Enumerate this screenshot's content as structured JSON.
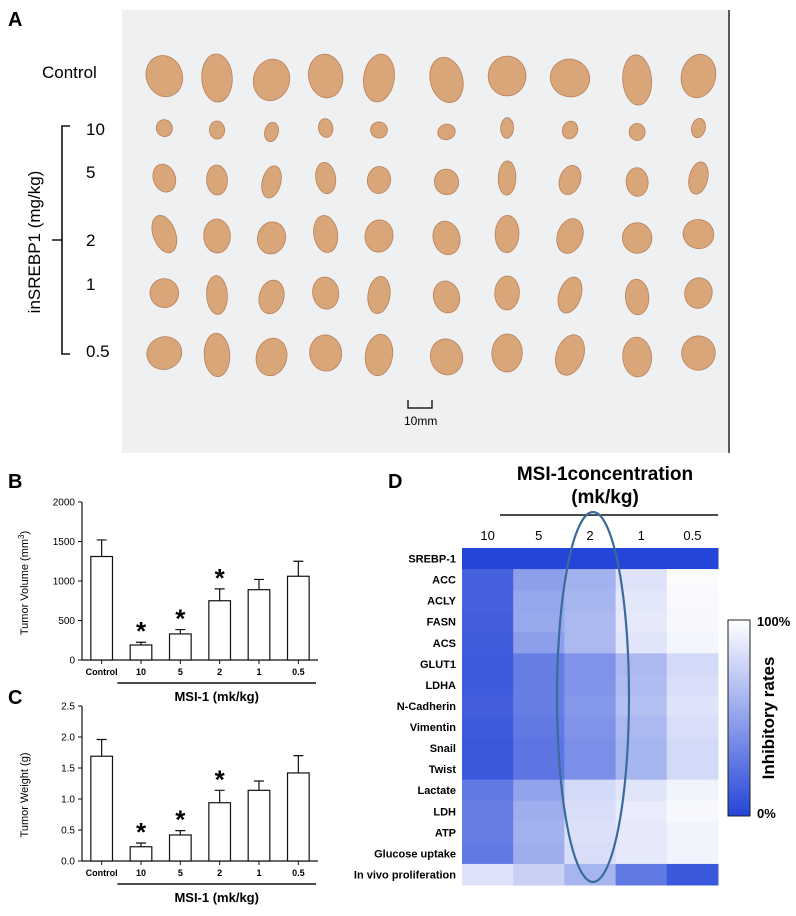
{
  "panel_a": {
    "label": "A",
    "row_label_control": "Control",
    "axis_label": "inSREBP1 (mg/kg)",
    "doses": [
      "10",
      "5",
      "2",
      "1",
      "0.5"
    ],
    "scale_bar_text": "10mm",
    "photo_background": "#eef0f2",
    "tumor_color": "#d9a67a",
    "tumor_counts": {
      "control": 10,
      "per_dose_row": 10
    }
  },
  "panel_b": {
    "label": "B",
    "chart_data": {
      "type": "bar",
      "ylabel": "Tumor Volume (mm",
      "ylabel_sup": "3",
      "ylabel_close": ")",
      "xlabel": "MSI-1 (mk/kg)",
      "categories": [
        "Control",
        "10",
        "5",
        "2",
        "1",
        "0.5"
      ],
      "values": [
        1310,
        190,
        330,
        750,
        890,
        1060
      ],
      "errors": [
        210,
        35,
        55,
        150,
        130,
        190
      ],
      "significant": [
        false,
        true,
        true,
        true,
        false,
        false
      ],
      "significance_marker": "*",
      "ylim": [
        0,
        2000
      ],
      "yticks": [
        "0",
        "500",
        "1000",
        "1500",
        "2000"
      ],
      "ytick_values": [
        0,
        500,
        1000,
        1500,
        2000
      ]
    }
  },
  "panel_c": {
    "label": "C",
    "chart_data": {
      "type": "bar",
      "ylabel": "Tumor Weight (g)",
      "xlabel": "MSI-1 (mk/kg)",
      "categories": [
        "Control",
        "10",
        "5",
        "2",
        "1",
        "0.5"
      ],
      "values": [
        1.69,
        0.23,
        0.42,
        0.94,
        1.14,
        1.42
      ],
      "errors": [
        0.27,
        0.06,
        0.07,
        0.2,
        0.15,
        0.28
      ],
      "significant": [
        false,
        true,
        true,
        true,
        false,
        false
      ],
      "significance_marker": "*",
      "ylim": [
        0,
        2.5
      ],
      "yticks": [
        "0.0",
        "0.5",
        "1.0",
        "1.5",
        "2.0",
        "2.5"
      ],
      "ytick_values": [
        0,
        0.5,
        1.0,
        1.5,
        2.0,
        2.5
      ]
    }
  },
  "panel_d": {
    "label": "D",
    "chart_data": {
      "type": "heatmap",
      "title_line1": "MSI-1concentration",
      "title_line2": "(mk/kg)",
      "columns": [
        "10",
        "5",
        "2",
        "1",
        "0.5"
      ],
      "rows": [
        "SREBP-1",
        "ACC",
        "ACLY",
        "FASN",
        "ACS",
        "GLUT1",
        "LDHA",
        "N-Cadherin",
        "Vimentin",
        "Snail",
        "Twist",
        "Lactate",
        "LDH",
        "ATP",
        "Glucose uptake",
        "In vivo proliferation"
      ],
      "values": [
        [
          100,
          100,
          100,
          100,
          100
        ],
        [
          85,
          52,
          42,
          15,
          2
        ],
        [
          85,
          48,
          40,
          13,
          3
        ],
        [
          86,
          47,
          38,
          12,
          4
        ],
        [
          87,
          52,
          38,
          14,
          5
        ],
        [
          88,
          70,
          58,
          38,
          20
        ],
        [
          88,
          70,
          58,
          36,
          18
        ],
        [
          86,
          70,
          56,
          34,
          15
        ],
        [
          88,
          72,
          58,
          38,
          18
        ],
        [
          90,
          74,
          60,
          40,
          20
        ],
        [
          90,
          74,
          60,
          40,
          20
        ],
        [
          72,
          50,
          20,
          14,
          6
        ],
        [
          70,
          44,
          18,
          10,
          4
        ],
        [
          70,
          42,
          16,
          12,
          6
        ],
        [
          72,
          44,
          18,
          12,
          6
        ],
        [
          15,
          25,
          40,
          72,
          90
        ]
      ],
      "colorbar_label": "Inhibitory rates",
      "colorbar_max_label": "100%",
      "colorbar_min_label": "0%",
      "color_high": "#2445d8",
      "color_low": "#ffffff",
      "highlight_ring_color": "#3a6b9b",
      "highlight_column": "2"
    }
  }
}
